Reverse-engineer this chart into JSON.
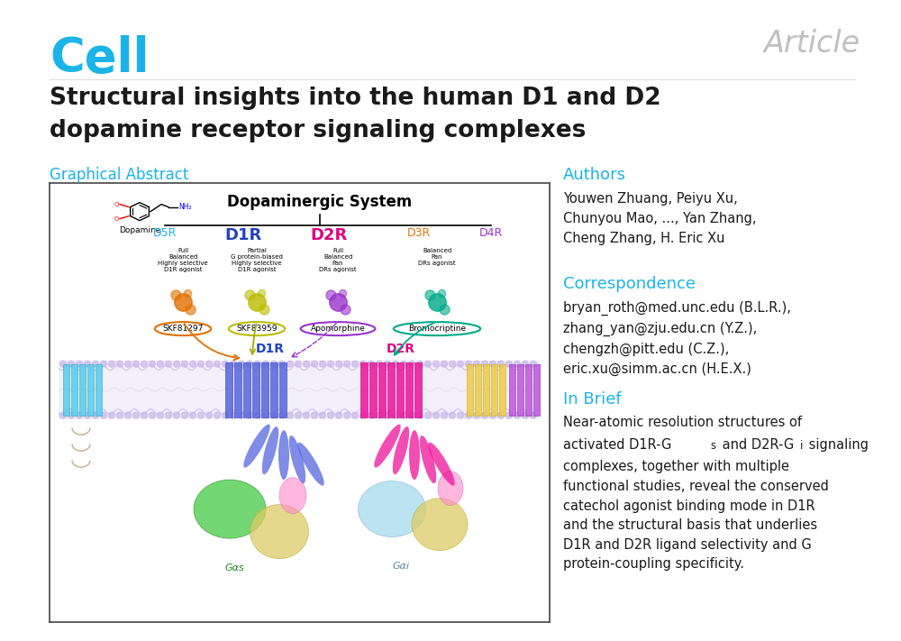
{
  "bg_color": "#ffffff",
  "cell_color": "#1ab4e8",
  "article_color": "#c0c0c0",
  "section_color": "#1ab4e8",
  "body_color": "#1a1a1a",
  "title_text_line1": "Structural insights into the human D1 and D2",
  "title_text_line2": "dopamine receptor signaling complexes",
  "cell_label": "Cell",
  "article_label": "Article",
  "graphical_abstract_label": "Graphical Abstract",
  "authors_label": "Authors",
  "authors_text": "Youwen Zhuang, Peiyu Xu,\nChunyou Mao, ..., Yan Zhang,\nCheng Zhang, H. Eric Xu",
  "correspondence_label": "Correspondence",
  "correspondence_text": "bryan_roth@med.unc.edu (B.L.R.),\nzhang_yan@zju.edu.cn (Y.Z.),\nchengzh@pitt.edu (C.Z.),\neric.xu@simm.ac.cn (H.E.X.)",
  "in_brief_label": "In Brief",
  "in_brief_line1": "Near-atomic resolution structures of",
  "in_brief_line2": "activated D1R-G",
  "in_brief_line2b": "s",
  "in_brief_line2c": " and D2R-G",
  "in_brief_line2d": "i",
  "in_brief_line2e": " signaling",
  "in_brief_rest": "complexes, together with multiple\nfunctional studies, reveal the conserved\ncatechol agonist binding mode in D1R\nand the structural basis that underlies\nD1R and D2R ligand selectivity and G\nprotein-coupling specificity.",
  "dopaminergic_title": "Dopaminergic System",
  "dopamine_label": "Dopamine",
  "receptors": [
    "D5R",
    "D1R",
    "D2R",
    "D3R",
    "D4R"
  ],
  "receptor_colors": [
    "#1ab4e8",
    "#2244bb",
    "#e0007f",
    "#e07000",
    "#9933cc"
  ],
  "drug_labels": [
    "SKF81297",
    "SKF83959",
    "Apomorphine",
    "Bromocriptine"
  ],
  "drug_colors": [
    "#e07000",
    "#bbbb00",
    "#9933cc",
    "#00aa88"
  ],
  "d1r_label_color": "#2244bb",
  "d2r_label_color": "#e0007f",
  "gas_color": "#33aa33",
  "gai_color": "#88bbcc",
  "membrane_color": "#d8d0f0",
  "d5r_color": "#44bbee",
  "d1r_mem_color": "#4455cc",
  "d2r_mem_color": "#dd1188",
  "d3r_mem_color": "#eecc44",
  "d4r_mem_color": "#aa44cc"
}
